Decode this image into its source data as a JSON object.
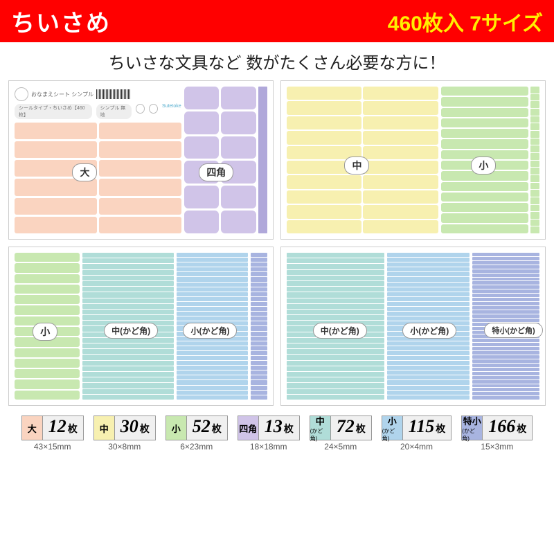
{
  "header": {
    "title": "ちいさめ",
    "count": "460",
    "count_unit": "枚入",
    "sizes": "7",
    "sizes_unit": "サイズ"
  },
  "subtitle": "ちいさな文具など 数がたくさん必要な方に！",
  "panel_labels": {
    "dai": "大",
    "shikaku": "四角",
    "chu": "中",
    "sho": "小",
    "chu_kado": "中(かど角)",
    "sho_kado": "小(かど角)",
    "tokusho_kado": "特小(かど角)"
  },
  "top_strip": {
    "title": "おなまえシート シンプル",
    "detail": "シールタイプ・ちいさめ【460枚】",
    "tag": "シンプル 無地",
    "brand": "Sutetoke"
  },
  "legend": [
    {
      "label": "大",
      "sub": "",
      "count": "12",
      "dim": "43×15mm",
      "color": "c-peach"
    },
    {
      "label": "中",
      "sub": "",
      "count": "30",
      "dim": "30×8mm",
      "color": "c-yellow"
    },
    {
      "label": "小",
      "sub": "",
      "count": "52",
      "dim": "6×23mm",
      "color": "c-green"
    },
    {
      "label": "四角",
      "sub": "",
      "count": "13",
      "dim": "18×18mm",
      "color": "c-purple"
    },
    {
      "label": "中",
      "sub": "(かど角)",
      "count": "72",
      "dim": "24×5mm",
      "color": "c-teal"
    },
    {
      "label": "小",
      "sub": "(かど角)",
      "count": "115",
      "dim": "20×4mm",
      "color": "c-blue"
    },
    {
      "label": "特小",
      "sub": "(かど角)",
      "count": "166",
      "dim": "15×3mm",
      "color": "c-indigo"
    }
  ]
}
